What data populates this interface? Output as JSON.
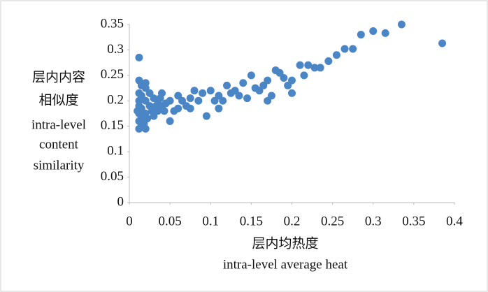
{
  "chart_data": {
    "type": "scatter",
    "ylabel_lines": [
      "层内内容",
      "相似度",
      "intra-level",
      "content",
      "similarity"
    ],
    "xlabel_lines": [
      "层内均热度",
      "intra-level average heat"
    ],
    "color": "#4a86c5",
    "xlim": [
      0,
      0.4
    ],
    "xticks": [
      0,
      0.05,
      0.1,
      0.15,
      0.2,
      0.25,
      0.3,
      0.35,
      0.4
    ],
    "ylim": [
      0,
      0.35
    ],
    "yticks": [
      0,
      0.05,
      0.1,
      0.15,
      0.2,
      0.25,
      0.3,
      0.35
    ],
    "x": [
      0.012,
      0.385,
      0.335,
      0.3,
      0.315,
      0.285,
      0.265,
      0.275,
      0.255,
      0.245,
      0.235,
      0.228,
      0.22,
      0.21,
      0.215,
      0.2,
      0.195,
      0.19,
      0.18,
      0.185,
      0.17,
      0.165,
      0.16,
      0.15,
      0.155,
      0.14,
      0.145,
      0.13,
      0.12,
      0.125,
      0.11,
      0.115,
      0.1,
      0.105,
      0.09,
      0.095,
      0.085,
      0.08,
      0.075,
      0.07,
      0.065,
      0.06,
      0.055,
      0.05,
      0.05,
      0.045,
      0.04,
      0.04,
      0.035,
      0.035,
      0.03,
      0.03,
      0.025,
      0.025,
      0.02,
      0.02,
      0.02,
      0.02,
      0.02,
      0.015,
      0.015,
      0.015,
      0.015,
      0.015,
      0.012,
      0.012,
      0.012,
      0.012,
      0.012,
      0.012,
      0.012,
      0.01,
      0.018,
      0.022,
      0.028,
      0.033,
      0.038,
      0.043,
      0.06,
      0.075,
      0.11,
      0.135,
      0.175,
      0.2,
      0.17
    ],
    "y": [
      0.285,
      0.313,
      0.35,
      0.337,
      0.333,
      0.33,
      0.302,
      0.302,
      0.29,
      0.278,
      0.265,
      0.265,
      0.27,
      0.27,
      0.25,
      0.24,
      0.23,
      0.245,
      0.26,
      0.255,
      0.24,
      0.23,
      0.22,
      0.25,
      0.225,
      0.235,
      0.205,
      0.22,
      0.23,
      0.215,
      0.21,
      0.2,
      0.22,
      0.2,
      0.215,
      0.17,
      0.2,
      0.22,
      0.205,
      0.19,
      0.2,
      0.21,
      0.18,
      0.16,
      0.2,
      0.195,
      0.215,
      0.19,
      0.18,
      0.2,
      0.17,
      0.205,
      0.19,
      0.215,
      0.145,
      0.175,
      0.2,
      0.225,
      0.235,
      0.15,
      0.165,
      0.185,
      0.21,
      0.23,
      0.145,
      0.16,
      0.175,
      0.19,
      0.2,
      0.215,
      0.24,
      0.18,
      0.155,
      0.165,
      0.18,
      0.19,
      0.205,
      0.18,
      0.185,
      0.185,
      0.185,
      0.21,
      0.21,
      0.215,
      0.2
    ]
  }
}
